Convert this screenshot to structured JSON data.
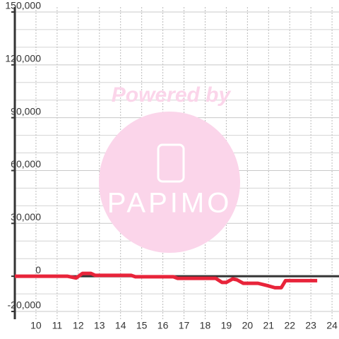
{
  "chart_data": {
    "type": "line",
    "annotations": [
      "Powered by",
      "PAPIMO"
    ],
    "x": [
      9,
      11.5,
      11.9,
      12.2,
      12.6,
      12.8,
      14.5,
      14.7,
      16.5,
      16.7,
      18.5,
      18.8,
      19.0,
      19.3,
      19.5,
      19.8,
      20.5,
      21.0,
      21.3,
      21.6,
      21.8,
      23.3
    ],
    "series": [
      {
        "color": "#e8243a",
        "values": [
          0,
          0,
          -1000,
          1600,
          1600,
          500,
          500,
          -300,
          -300,
          -1200,
          -1200,
          -3500,
          -3500,
          -1500,
          -2000,
          -4000,
          -4000,
          -5500,
          -6500,
          -6500,
          -2500,
          -2500
        ]
      }
    ],
    "xlim": [
      9,
      24.33
    ],
    "xticks": [
      10,
      11,
      12,
      13,
      14,
      15,
      16,
      17,
      18,
      19,
      20,
      21,
      22,
      23,
      24
    ],
    "ylim": [
      -24400,
      152800
    ],
    "yticks": [
      {
        "value": -20000,
        "label": "-20,000"
      },
      0,
      {
        "value": 30000,
        "label": "30,000"
      },
      {
        "value": 60000,
        "label": "60,000"
      },
      {
        "value": 90000,
        "label": "90,000"
      },
      {
        "value": 120000,
        "label": "120,000"
      },
      {
        "value": 150000,
        "label": "150,000"
      }
    ],
    "yminorticks": [
      -10000,
      10000,
      20000,
      40000,
      50000,
      70000,
      80000,
      100000,
      110000,
      130000,
      140000
    ],
    "grid": true
  }
}
